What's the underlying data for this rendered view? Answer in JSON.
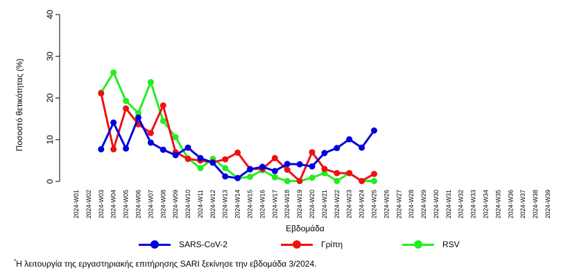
{
  "chart_data": {
    "type": "line",
    "title": "",
    "xlabel": "Εβδομάδα",
    "ylabel": "Ποσοστό θετικότητας (%)",
    "ylim": [
      0,
      40
    ],
    "yticks": [
      0,
      10,
      20,
      30,
      40
    ],
    "grid": false,
    "legend_position": "bottom",
    "categories": [
      "2024-W01",
      "2024-W02",
      "2024-W03",
      "2024-W04",
      "2024-W05",
      "2024-W06",
      "2024-W07",
      "2024-W08",
      "2024-W09",
      "2024-W10",
      "2024-W11",
      "2024-W12",
      "2024-W13",
      "2024-W14",
      "2024-W15",
      "2024-W16",
      "2024-W17",
      "2024-W18",
      "2024-W19",
      "2024-W20",
      "2024-W21",
      "2024-W22",
      "2024-W23",
      "2024-W24",
      "2024-W25",
      "2024-W26",
      "2024-W27",
      "2024-W28",
      "2024-W29",
      "2024-W30",
      "2024-W31",
      "2024-W32",
      "2024-W33",
      "2024-W34",
      "2024-W35",
      "2024-W36",
      "2024-W37",
      "2024-W38",
      "2024-W39"
    ],
    "series": [
      {
        "name": "SARS-CoV-2",
        "color": "#0000dd",
        "values": [
          null,
          null,
          7.7,
          14.1,
          7.9,
          15.3,
          9.3,
          7.6,
          6.3,
          8.1,
          5.6,
          4.5,
          1.2,
          0.8,
          2.9,
          3.5,
          2.5,
          4.2,
          4.1,
          3.6,
          6.8,
          8.0,
          10.1,
          8.1,
          12.2,
          null,
          null,
          null,
          null,
          null,
          null,
          null,
          null,
          null,
          null,
          null,
          null,
          null,
          null
        ]
      },
      {
        "name": "Γρίπη",
        "color": "#ee1111",
        "values": [
          null,
          null,
          21.1,
          7.7,
          17.5,
          13.7,
          11.6,
          18.2,
          7.0,
          5.4,
          5.0,
          4.6,
          5.3,
          6.9,
          3.0,
          3.0,
          5.6,
          2.8,
          0.1,
          7.0,
          3.0,
          2.0,
          2.0,
          0.1,
          1.8,
          null,
          null,
          null,
          null,
          null,
          null,
          null,
          null,
          null,
          null,
          null,
          null,
          null,
          null
        ]
      },
      {
        "name": "RSV",
        "color": "#22ee22",
        "values": [
          null,
          null,
          21.3,
          26.1,
          19.3,
          16.4,
          23.8,
          14.5,
          10.6,
          5.5,
          3.2,
          5.4,
          3.2,
          0.8,
          1.1,
          2.7,
          1.0,
          0.1,
          0.1,
          0.9,
          2.0,
          0.1,
          2.0,
          0.1,
          0.1,
          null,
          null,
          null,
          null,
          null,
          null,
          null,
          null,
          null,
          null,
          null,
          null,
          null,
          null
        ]
      }
    ]
  },
  "legend": {
    "items": [
      {
        "label": "SARS-CoV-2",
        "color": "#0000dd"
      },
      {
        "label": "Γρίπη",
        "color": "#ee1111"
      },
      {
        "label": "RSV",
        "color": "#22ee22"
      }
    ]
  },
  "footnote": {
    "marker": "*",
    "text": "Η λειτουργία της εργαστηριακής επιτήρησης SARI ξεκίνησε την εβδομάδα 3/2024."
  }
}
